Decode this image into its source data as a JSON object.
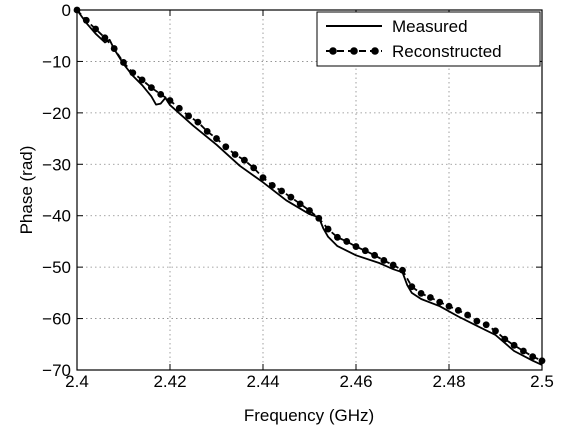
{
  "chart_data": {
    "type": "line",
    "xlabel": "Frequency (GHz)",
    "ylabel": "Phase (rad)",
    "xlim": [
      2.4,
      2.5
    ],
    "ylim": [
      -70,
      0
    ],
    "xticks": [
      "2.4",
      "2.42",
      "2.44",
      "2.46",
      "2.48",
      "2.5"
    ],
    "yticks": [
      "0",
      "−10",
      "−20",
      "−30",
      "−40",
      "−50",
      "−60",
      "−70"
    ],
    "grid": true,
    "legend_position": "top-right",
    "series": [
      {
        "name": "Measured",
        "style": "solid",
        "color": "#000000",
        "x": [
          2.4,
          2.402,
          2.404,
          2.406,
          2.407,
          2.408,
          2.41,
          2.412,
          2.414,
          2.416,
          2.417,
          2.418,
          2.419,
          2.42,
          2.425,
          2.43,
          2.435,
          2.44,
          2.445,
          2.45,
          2.452,
          2.453,
          2.454,
          2.456,
          2.46,
          2.465,
          2.468,
          2.47,
          2.471,
          2.472,
          2.474,
          2.478,
          2.482,
          2.486,
          2.49,
          2.494,
          2.498,
          2.5
        ],
        "y": [
          0,
          -2.5,
          -4.6,
          -6.3,
          -5.8,
          -7.6,
          -10.5,
          -12.8,
          -14.6,
          -16.8,
          -18.4,
          -18.2,
          -17.1,
          -18.5,
          -22.5,
          -26.2,
          -30.3,
          -33.5,
          -37.0,
          -39.7,
          -40.3,
          -42.5,
          -44.1,
          -45.9,
          -47.7,
          -49.2,
          -50.4,
          -51.0,
          -53.5,
          -55.0,
          -56.2,
          -57.6,
          -59.6,
          -61.4,
          -63.2,
          -66.3,
          -68.2,
          -69.0
        ]
      },
      {
        "name": "Reconstructed",
        "style": "dashed-with-dots",
        "color": "#000000",
        "x": [
          2.4,
          2.402,
          2.404,
          2.406,
          2.408,
          2.41,
          2.412,
          2.414,
          2.416,
          2.418,
          2.42,
          2.422,
          2.424,
          2.426,
          2.428,
          2.43,
          2.432,
          2.434,
          2.436,
          2.438,
          2.44,
          2.442,
          2.444,
          2.446,
          2.448,
          2.45,
          2.452,
          2.454,
          2.456,
          2.458,
          2.46,
          2.462,
          2.464,
          2.466,
          2.468,
          2.47,
          2.472,
          2.474,
          2.476,
          2.478,
          2.48,
          2.482,
          2.484,
          2.486,
          2.488,
          2.49,
          2.492,
          2.494,
          2.496,
          2.498,
          2.5
        ],
        "y": [
          0,
          -2.0,
          -3.7,
          -5.4,
          -7.5,
          -10.2,
          -12.2,
          -13.6,
          -15.1,
          -16.4,
          -17.6,
          -19.1,
          -20.6,
          -21.8,
          -23.6,
          -25.0,
          -26.6,
          -28.1,
          -29.2,
          -30.7,
          -32.6,
          -34.1,
          -35.2,
          -36.4,
          -37.7,
          -39.0,
          -40.5,
          -42.6,
          -44.2,
          -45.0,
          -46.0,
          -46.8,
          -47.7,
          -48.7,
          -49.6,
          -50.6,
          -53.8,
          -55.1,
          -55.9,
          -56.8,
          -57.6,
          -58.4,
          -59.3,
          -60.5,
          -61.2,
          -62.4,
          -64.0,
          -65.2,
          -66.3,
          -67.4,
          -68.2
        ]
      }
    ]
  }
}
